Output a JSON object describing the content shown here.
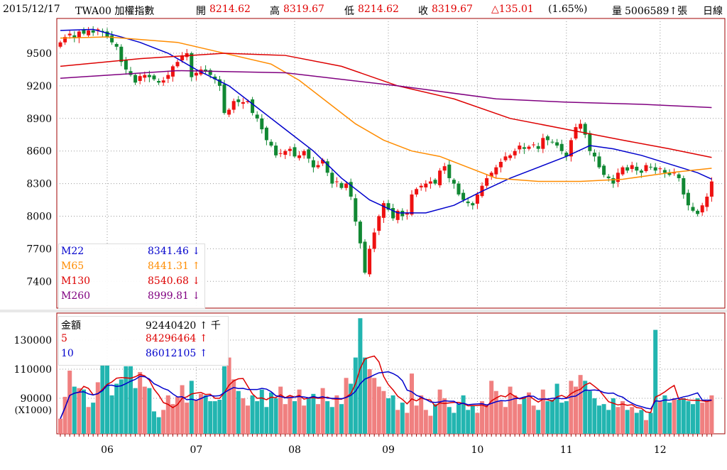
{
  "header": {
    "date": "2015/12/17",
    "symbol": "TWA00 加權指數",
    "open_label": "開",
    "open": "8214.62",
    "high_label": "高",
    "high": "8319.67",
    "low_label": "低",
    "low": "8214.62",
    "close_label": "收",
    "close": "8319.67",
    "change": "△135.01",
    "change_pct": "(1.65%)",
    "volume_label": "量",
    "volume": "5006589↑張",
    "period": "日線"
  },
  "price_legend": [
    {
      "name": "M22",
      "value": "8341.46 ↓",
      "color": "#0000cc"
    },
    {
      "name": "M65",
      "value": "8441.31 ↑",
      "color": "#ff8c00"
    },
    {
      "name": "M130",
      "value": "8540.68 ↓",
      "color": "#dd0000"
    },
    {
      "name": "M260",
      "value": "8999.81 ↓",
      "color": "#800080"
    }
  ],
  "volume_legend": [
    {
      "name": "金額",
      "value": "92440420 ↑ 千",
      "color": "#000000"
    },
    {
      "name": "5",
      "value": "84296464 ↑",
      "color": "#dd0000"
    },
    {
      "name": "10",
      "value": "86012105 ↑",
      "color": "#0000cc"
    }
  ],
  "chart_data": [
    {
      "type": "candlestick",
      "title": "TWA00 加權指數 日線",
      "ylim": [
        7200,
        9800
      ],
      "yticks": [
        7400,
        7700,
        8000,
        8300,
        8600,
        8900,
        9200,
        9500
      ],
      "yticklabels": [
        "7400",
        "7700",
        "8000",
        "8300",
        "8600",
        "8900",
        "9200",
        "9500"
      ],
      "xticklabels": [
        "06",
        "07",
        "08",
        "09",
        "10",
        "11",
        "12"
      ],
      "xtick_index": [
        10,
        29,
        50,
        70,
        89,
        108,
        128
      ],
      "close": [
        9600,
        9650,
        9680,
        9640,
        9700,
        9680,
        9710,
        9690,
        9720,
        9700,
        9650,
        9600,
        9560,
        9420,
        9350,
        9300,
        9230,
        9290,
        9300,
        9280,
        9260,
        9230,
        9250,
        9300,
        9380,
        9420,
        9480,
        9500,
        9280,
        9320,
        9350,
        9330,
        9300,
        9260,
        9200,
        8950,
        8980,
        9060,
        9050,
        9050,
        9060,
        8950,
        8900,
        8800,
        8700,
        8650,
        8560,
        8580,
        8600,
        8620,
        8550,
        8560,
        8600,
        8530,
        8450,
        8470,
        8520,
        8400,
        8300,
        8320,
        8260,
        8300,
        8180,
        7950,
        7750,
        7480,
        7700,
        7850,
        8000,
        8120,
        8060,
        7980,
        8050,
        8000,
        8030,
        8200,
        8250,
        8280,
        8300,
        8320,
        8300,
        8420,
        8460,
        8350,
        8300,
        8200,
        8150,
        8120,
        8100,
        8200,
        8280,
        8350,
        8400,
        8450,
        8500,
        8550,
        8560,
        8600,
        8650,
        8620,
        8640,
        8660,
        8620,
        8720,
        8700,
        8680,
        8650,
        8600,
        8550,
        8700,
        8820,
        8850,
        8750,
        8600,
        8550,
        8450,
        8380,
        8350,
        8300,
        8400,
        8450,
        8420,
        8470,
        8420,
        8400,
        8470,
        8450,
        8420,
        8440,
        8400,
        8380,
        8400,
        8350,
        8200,
        8100,
        8050,
        8020,
        8100,
        8180,
        8319.67
      ],
      "moving_averages": {
        "M22": [
          [
            0,
            9710
          ],
          [
            7,
            9720
          ],
          [
            13,
            9650
          ],
          [
            17,
            9600
          ],
          [
            23,
            9500
          ],
          [
            29,
            9350
          ],
          [
            36,
            9200
          ],
          [
            42,
            9000
          ],
          [
            48,
            8800
          ],
          [
            54,
            8600
          ],
          [
            60,
            8350
          ],
          [
            66,
            8150
          ],
          [
            72,
            8030
          ],
          [
            78,
            8030
          ],
          [
            84,
            8100
          ],
          [
            90,
            8230
          ],
          [
            96,
            8350
          ],
          [
            102,
            8450
          ],
          [
            108,
            8550
          ],
          [
            113,
            8650
          ],
          [
            118,
            8620
          ],
          [
            124,
            8560
          ],
          [
            130,
            8480
          ],
          [
            136,
            8400
          ],
          [
            139,
            8341.46
          ]
        ],
        "M65": [
          [
            0,
            9640
          ],
          [
            10,
            9650
          ],
          [
            25,
            9600
          ],
          [
            33,
            9520
          ],
          [
            45,
            9400
          ],
          [
            51,
            9250
          ],
          [
            57,
            9050
          ],
          [
            63,
            8850
          ],
          [
            69,
            8700
          ],
          [
            75,
            8600
          ],
          [
            81,
            8550
          ],
          [
            87,
            8450
          ],
          [
            93,
            8350
          ],
          [
            102,
            8320
          ],
          [
            111,
            8320
          ],
          [
            120,
            8340
          ],
          [
            130,
            8400
          ],
          [
            139,
            8441.31
          ]
        ],
        "M130": [
          [
            0,
            9380
          ],
          [
            17,
            9450
          ],
          [
            35,
            9500
          ],
          [
            48,
            9480
          ],
          [
            60,
            9380
          ],
          [
            72,
            9200
          ],
          [
            84,
            9080
          ],
          [
            96,
            8900
          ],
          [
            108,
            8800
          ],
          [
            120,
            8700
          ],
          [
            130,
            8620
          ],
          [
            139,
            8540.68
          ]
        ],
        "M260": [
          [
            0,
            9270
          ],
          [
            25,
            9340
          ],
          [
            48,
            9320
          ],
          [
            72,
            9200
          ],
          [
            93,
            9080
          ],
          [
            108,
            9050
          ],
          [
            124,
            9030
          ],
          [
            139,
            8999.81
          ]
        ]
      }
    },
    {
      "type": "bar",
      "title": "金額",
      "ylabel": "(X1000)",
      "ylim": [
        65600,
        148000
      ],
      "yticks": [
        90000,
        110000,
        130000
      ],
      "yticklabels": [
        "90000",
        "110000",
        "130000"
      ],
      "values": [
        76000,
        91000,
        109000,
        98000,
        97000,
        96000,
        84000,
        87000,
        101000,
        113000,
        113000,
        92000,
        100000,
        103000,
        112000,
        112000,
        97000,
        108000,
        98000,
        97000,
        81000,
        77000,
        82000,
        92000,
        86000,
        91000,
        99000,
        87000,
        102000,
        89000,
        93000,
        92000,
        88000,
        88000,
        89000,
        112000,
        118000,
        103000,
        95000,
        90000,
        85000,
        92000,
        88000,
        96000,
        84000,
        94000,
        90000,
        98000,
        86000,
        92000,
        88000,
        96000,
        85000,
        90000,
        93000,
        86000,
        97000,
        88000,
        84000,
        92000,
        86000,
        104000,
        100000,
        118000,
        145000,
        118000,
        110000,
        104000,
        98000,
        95000,
        90000,
        92000,
        82000,
        87000,
        80000,
        107000,
        85000,
        92000,
        82000,
        78000,
        86000,
        96000,
        90000,
        84000,
        80000,
        86000,
        92000,
        82000,
        85000,
        80000,
        88000,
        86000,
        102000,
        95000,
        88000,
        84000,
        98000,
        92000,
        86000,
        90000,
        94000,
        85000,
        82000,
        96000,
        88000,
        89000,
        100000,
        87000,
        88000,
        102000,
        98000,
        106000,
        102000,
        95000,
        90000,
        85000,
        86000,
        82000,
        90000,
        84000,
        88000,
        82000,
        84000,
        80000,
        82000,
        75000,
        80000,
        137000,
        88000,
        92000,
        87000,
        90000,
        89000,
        90000,
        88000,
        86000,
        90000,
        87000,
        88000,
        92000
      ],
      "series_lines": [
        "5",
        "10"
      ]
    }
  ]
}
